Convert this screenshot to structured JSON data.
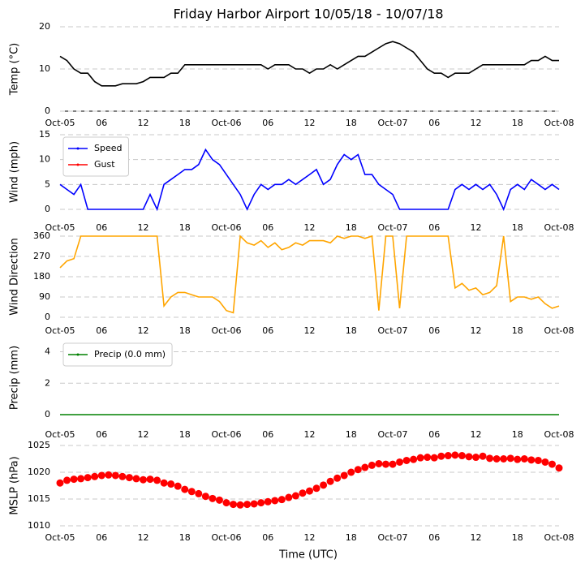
{
  "chart_data": [
    {
      "type": "line",
      "title": "Friday Harbor Airport 10/05/18 - 10/07/18",
      "ylabel": "Temp (°C)",
      "xlim": [
        0,
        72
      ],
      "xticks": [
        {
          "value": 0,
          "label": "Oct-05"
        },
        {
          "value": 6,
          "label": "06"
        },
        {
          "value": 12,
          "label": "12"
        },
        {
          "value": 18,
          "label": "18"
        },
        {
          "value": 24,
          "label": "Oct-06"
        },
        {
          "value": 30,
          "label": "06"
        },
        {
          "value": 36,
          "label": "12"
        },
        {
          "value": 42,
          "label": "18"
        },
        {
          "value": 48,
          "label": "Oct-07"
        },
        {
          "value": 54,
          "label": "06"
        },
        {
          "value": 60,
          "label": "12"
        },
        {
          "value": 66,
          "label": "18"
        },
        {
          "value": 72,
          "label": "Oct-08"
        }
      ],
      "ylim": [
        0,
        20
      ],
      "yticks": [
        0,
        10,
        20
      ],
      "grid": true,
      "x": [
        0,
        1,
        2,
        3,
        4,
        5,
        6,
        7,
        8,
        9,
        10,
        11,
        12,
        13,
        14,
        15,
        16,
        17,
        18,
        19,
        20,
        21,
        22,
        23,
        24,
        25,
        26,
        27,
        28,
        29,
        30,
        31,
        32,
        33,
        34,
        35,
        36,
        37,
        38,
        39,
        40,
        41,
        42,
        43,
        44,
        45,
        46,
        47,
        48,
        49,
        50,
        51,
        52,
        53,
        54,
        55,
        56,
        57,
        58,
        59,
        60,
        61,
        62,
        63,
        64,
        65,
        66,
        67,
        68,
        69,
        70,
        71,
        72
      ],
      "series": [
        {
          "color": "#000000",
          "values": [
            13,
            12,
            10,
            9,
            9,
            7,
            6,
            6,
            6,
            6.5,
            6.5,
            6.5,
            7,
            8,
            8,
            8,
            9,
            9,
            11,
            11,
            11,
            11,
            11,
            11,
            11,
            11,
            11,
            11,
            11,
            11,
            10,
            11,
            11,
            11,
            10,
            10,
            9,
            10,
            10,
            11,
            10,
            11,
            12,
            13,
            13,
            14,
            15,
            16,
            16.5,
            16,
            15,
            14,
            12,
            10,
            9,
            9,
            8,
            9,
            9,
            9,
            10,
            11,
            11,
            11,
            11,
            11,
            11,
            11,
            12,
            12,
            13,
            12,
            12
          ]
        }
      ]
    },
    {
      "type": "line",
      "ylabel": "Wind (mph)",
      "legend": "upper left",
      "xlim": [
        0,
        72
      ],
      "xticks": [
        {
          "value": 0,
          "label": "Oct-05"
        },
        {
          "value": 6,
          "label": "06"
        },
        {
          "value": 12,
          "label": "12"
        },
        {
          "value": 18,
          "label": "18"
        },
        {
          "value": 24,
          "label": "Oct-06"
        },
        {
          "value": 30,
          "label": "06"
        },
        {
          "value": 36,
          "label": "12"
        },
        {
          "value": 42,
          "label": "18"
        },
        {
          "value": 48,
          "label": "Oct-07"
        },
        {
          "value": 54,
          "label": "06"
        },
        {
          "value": 60,
          "label": "12"
        },
        {
          "value": 66,
          "label": "18"
        },
        {
          "value": 72,
          "label": "Oct-08"
        }
      ],
      "ylim": [
        0,
        15
      ],
      "yticks": [
        0,
        5,
        10,
        15
      ],
      "grid": true,
      "x": [
        0,
        1,
        2,
        3,
        4,
        5,
        6,
        7,
        8,
        9,
        10,
        11,
        12,
        13,
        14,
        15,
        16,
        17,
        18,
        19,
        20,
        21,
        22,
        23,
        24,
        25,
        26,
        27,
        28,
        29,
        30,
        31,
        32,
        33,
        34,
        35,
        36,
        37,
        38,
        39,
        40,
        41,
        42,
        43,
        44,
        45,
        46,
        47,
        48,
        49,
        50,
        51,
        52,
        53,
        54,
        55,
        56,
        57,
        58,
        59,
        60,
        61,
        62,
        63,
        64,
        65,
        66,
        67,
        68,
        69,
        70,
        71,
        72
      ],
      "series": [
        {
          "name": "Speed",
          "color": "#0000ff",
          "values": [
            5,
            4,
            3,
            5,
            0,
            0,
            0,
            0,
            0,
            0,
            0,
            0,
            0,
            3,
            0,
            5,
            6,
            7,
            8,
            8,
            9,
            12,
            10,
            9,
            7,
            5,
            3,
            0,
            3,
            5,
            4,
            5,
            5,
            6,
            5,
            6,
            7,
            8,
            5,
            6,
            9,
            11,
            10,
            11,
            7,
            7,
            5,
            4,
            3,
            0,
            0,
            0,
            0,
            0,
            0,
            0,
            0,
            4,
            5,
            4,
            5,
            4,
            5,
            3,
            0,
            4,
            5,
            4,
            6,
            5,
            4,
            5,
            4
          ]
        },
        {
          "name": "Gust",
          "color": "#ff0000",
          "values": [
            null,
            null,
            null,
            null,
            null,
            null,
            null,
            null,
            null,
            null,
            null,
            null,
            null,
            null,
            null,
            null,
            null,
            null,
            null,
            null,
            null,
            null,
            null,
            null,
            null,
            null,
            null,
            null,
            null,
            null,
            null,
            null,
            null,
            null,
            null,
            null,
            null,
            null,
            null,
            null,
            null,
            null,
            null,
            null,
            null,
            null,
            null,
            null,
            null,
            null,
            null,
            null,
            null,
            null,
            null,
            null,
            null,
            null,
            null,
            null,
            null,
            null,
            null,
            null,
            null,
            null,
            null,
            null,
            null,
            null,
            null,
            null,
            null
          ]
        }
      ]
    },
    {
      "type": "line",
      "ylabel": "Wind Direction",
      "xlim": [
        0,
        72
      ],
      "xticks": [
        {
          "value": 0,
          "label": "Oct-05"
        },
        {
          "value": 6,
          "label": "06"
        },
        {
          "value": 12,
          "label": "12"
        },
        {
          "value": 18,
          "label": "18"
        },
        {
          "value": 24,
          "label": "Oct-06"
        },
        {
          "value": 30,
          "label": "06"
        },
        {
          "value": 36,
          "label": "12"
        },
        {
          "value": 42,
          "label": "18"
        },
        {
          "value": 48,
          "label": "Oct-07"
        },
        {
          "value": 54,
          "label": "06"
        },
        {
          "value": 60,
          "label": "12"
        },
        {
          "value": 66,
          "label": "18"
        },
        {
          "value": 72,
          "label": "Oct-08"
        }
      ],
      "ylim": [
        0,
        360
      ],
      "yticks": [
        0,
        90,
        180,
        270,
        360
      ],
      "grid": true,
      "x": [
        0,
        1,
        2,
        3,
        4,
        5,
        6,
        7,
        8,
        9,
        10,
        11,
        12,
        13,
        14,
        15,
        16,
        17,
        18,
        19,
        20,
        21,
        22,
        23,
        24,
        25,
        26,
        27,
        28,
        29,
        30,
        31,
        32,
        33,
        34,
        35,
        36,
        37,
        38,
        39,
        40,
        41,
        42,
        43,
        44,
        45,
        46,
        47,
        48,
        49,
        50,
        51,
        52,
        53,
        54,
        55,
        56,
        57,
        58,
        59,
        60,
        61,
        62,
        63,
        64,
        65,
        66,
        67,
        68,
        69,
        70,
        71,
        72
      ],
      "series": [
        {
          "color": "#ffa500",
          "values": [
            220,
            250,
            260,
            360,
            360,
            360,
            360,
            360,
            360,
            360,
            360,
            360,
            360,
            360,
            360,
            50,
            90,
            110,
            110,
            100,
            90,
            90,
            90,
            70,
            30,
            20,
            360,
            330,
            320,
            340,
            310,
            330,
            300,
            310,
            330,
            320,
            340,
            340,
            340,
            330,
            360,
            350,
            360,
            360,
            350,
            360,
            30,
            360,
            360,
            40,
            360,
            360,
            360,
            360,
            360,
            360,
            360,
            130,
            150,
            120,
            130,
            100,
            110,
            140,
            360,
            70,
            90,
            90,
            80,
            90,
            60,
            40,
            50
          ]
        }
      ]
    },
    {
      "type": "line",
      "ylabel": "Precip (mm)",
      "legend": "upper left",
      "xlim": [
        0,
        72
      ],
      "xticks": [
        {
          "value": 0,
          "label": "Oct-05"
        },
        {
          "value": 6,
          "label": "06"
        },
        {
          "value": 12,
          "label": "12"
        },
        {
          "value": 18,
          "label": "18"
        },
        {
          "value": 24,
          "label": "Oct-06"
        },
        {
          "value": 30,
          "label": "06"
        },
        {
          "value": 36,
          "label": "12"
        },
        {
          "value": 42,
          "label": "18"
        },
        {
          "value": 48,
          "label": "Oct-07"
        },
        {
          "value": 54,
          "label": "06"
        },
        {
          "value": 60,
          "label": "12"
        },
        {
          "value": 66,
          "label": "18"
        },
        {
          "value": 72,
          "label": "Oct-08"
        }
      ],
      "ylim": [
        0,
        4.7
      ],
      "yticks": [
        0,
        2,
        4
      ],
      "grid": true,
      "x": [
        0,
        1,
        2,
        3,
        4,
        5,
        6,
        7,
        8,
        9,
        10,
        11,
        12,
        13,
        14,
        15,
        16,
        17,
        18,
        19,
        20,
        21,
        22,
        23,
        24,
        25,
        26,
        27,
        28,
        29,
        30,
        31,
        32,
        33,
        34,
        35,
        36,
        37,
        38,
        39,
        40,
        41,
        42,
        43,
        44,
        45,
        46,
        47,
        48,
        49,
        50,
        51,
        52,
        53,
        54,
        55,
        56,
        57,
        58,
        59,
        60,
        61,
        62,
        63,
        64,
        65,
        66,
        67,
        68,
        69,
        70,
        71,
        72
      ],
      "series": [
        {
          "name": "Precip (0.0 mm)",
          "color": "#008000",
          "values": [
            0,
            0,
            0,
            0,
            0,
            0,
            0,
            0,
            0,
            0,
            0,
            0,
            0,
            0,
            0,
            0,
            0,
            0,
            0,
            0,
            0,
            0,
            0,
            0,
            0,
            0,
            0,
            0,
            0,
            0,
            0,
            0,
            0,
            0,
            0,
            0,
            0,
            0,
            0,
            0,
            0,
            0,
            0,
            0,
            0,
            0,
            0,
            0,
            0,
            0,
            0,
            0,
            0,
            0,
            0,
            0,
            0,
            0,
            0,
            0,
            0,
            0,
            0,
            0,
            0,
            0,
            0,
            0,
            0,
            0,
            0,
            0,
            0
          ]
        }
      ]
    },
    {
      "type": "scatter",
      "ylabel": "MSLP (hPa)",
      "xlabel": "Time (UTC)",
      "xlim": [
        0,
        72
      ],
      "xticks": [
        {
          "value": 0,
          "label": "Oct-05"
        },
        {
          "value": 6,
          "label": "06"
        },
        {
          "value": 12,
          "label": "12"
        },
        {
          "value": 18,
          "label": "18"
        },
        {
          "value": 24,
          "label": "Oct-06"
        },
        {
          "value": 30,
          "label": "06"
        },
        {
          "value": 36,
          "label": "12"
        },
        {
          "value": 42,
          "label": "18"
        },
        {
          "value": 48,
          "label": "Oct-07"
        },
        {
          "value": 54,
          "label": "06"
        },
        {
          "value": 60,
          "label": "12"
        },
        {
          "value": 66,
          "label": "18"
        },
        {
          "value": 72,
          "label": "Oct-08"
        }
      ],
      "ylim": [
        1010,
        1025
      ],
      "yticks": [
        1010,
        1015,
        1020,
        1025
      ],
      "grid": true,
      "x": [
        0,
        1,
        2,
        3,
        4,
        5,
        6,
        7,
        8,
        9,
        10,
        11,
        12,
        13,
        14,
        15,
        16,
        17,
        18,
        19,
        20,
        21,
        22,
        23,
        24,
        25,
        26,
        27,
        28,
        29,
        30,
        31,
        32,
        33,
        34,
        35,
        36,
        37,
        38,
        39,
        40,
        41,
        42,
        43,
        44,
        45,
        46,
        47,
        48,
        49,
        50,
        51,
        52,
        53,
        54,
        55,
        56,
        57,
        58,
        59,
        60,
        61,
        62,
        63,
        64,
        65,
        66,
        67,
        68,
        69,
        70,
        71,
        72
      ],
      "series": [
        {
          "color": "#ff0000",
          "values": [
            1018,
            1018.5,
            1018.7,
            1018.8,
            1019,
            1019.2,
            1019.4,
            1019.5,
            1019.4,
            1019.2,
            1019,
            1018.8,
            1018.6,
            1018.7,
            1018.5,
            1018,
            1017.8,
            1017.4,
            1016.8,
            1016.4,
            1016,
            1015.5,
            1015.1,
            1014.8,
            1014.3,
            1014,
            1013.9,
            1014,
            1014.1,
            1014.3,
            1014.5,
            1014.7,
            1014.9,
            1015.3,
            1015.6,
            1016.1,
            1016.5,
            1017,
            1017.6,
            1018.3,
            1018.9,
            1019.4,
            1020,
            1020.5,
            1020.9,
            1021.3,
            1021.6,
            1021.5,
            1021.5,
            1021.9,
            1022.2,
            1022.4,
            1022.7,
            1022.8,
            1022.7,
            1023,
            1023.1,
            1023.2,
            1023.1,
            1022.9,
            1022.8,
            1023,
            1022.6,
            1022.5,
            1022.5,
            1022.6,
            1022.4,
            1022.5,
            1022.3,
            1022.2,
            1021.9,
            1021.5,
            1020.8
          ]
        }
      ]
    }
  ]
}
